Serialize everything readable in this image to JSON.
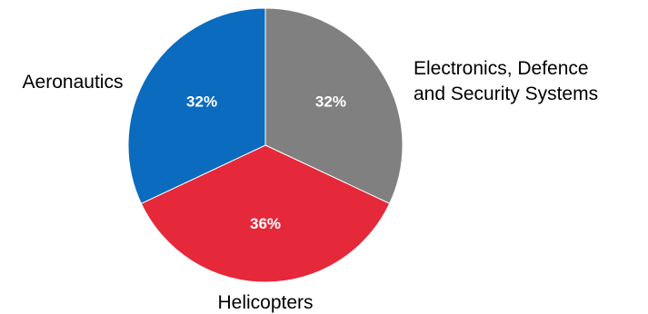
{
  "chart_data": {
    "type": "pie",
    "title": "",
    "start_angle_deg": 0,
    "direction": "clockwise",
    "slices": [
      {
        "label": "Electronics, Defence and Security Systems",
        "label_lines": [
          "Electronics, Defence",
          "and Security Systems"
        ],
        "value": 32,
        "value_label": "32%",
        "color": "#808080"
      },
      {
        "label": "Helicopters",
        "label_lines": [
          "Helicopters"
        ],
        "value": 36,
        "value_label": "36%",
        "color": "#E5283A"
      },
      {
        "label": "Aeronautics",
        "label_lines": [
          "Aeronautics"
        ],
        "value": 32,
        "value_label": "32%",
        "color": "#0A6BBF"
      }
    ],
    "legend": "none"
  }
}
